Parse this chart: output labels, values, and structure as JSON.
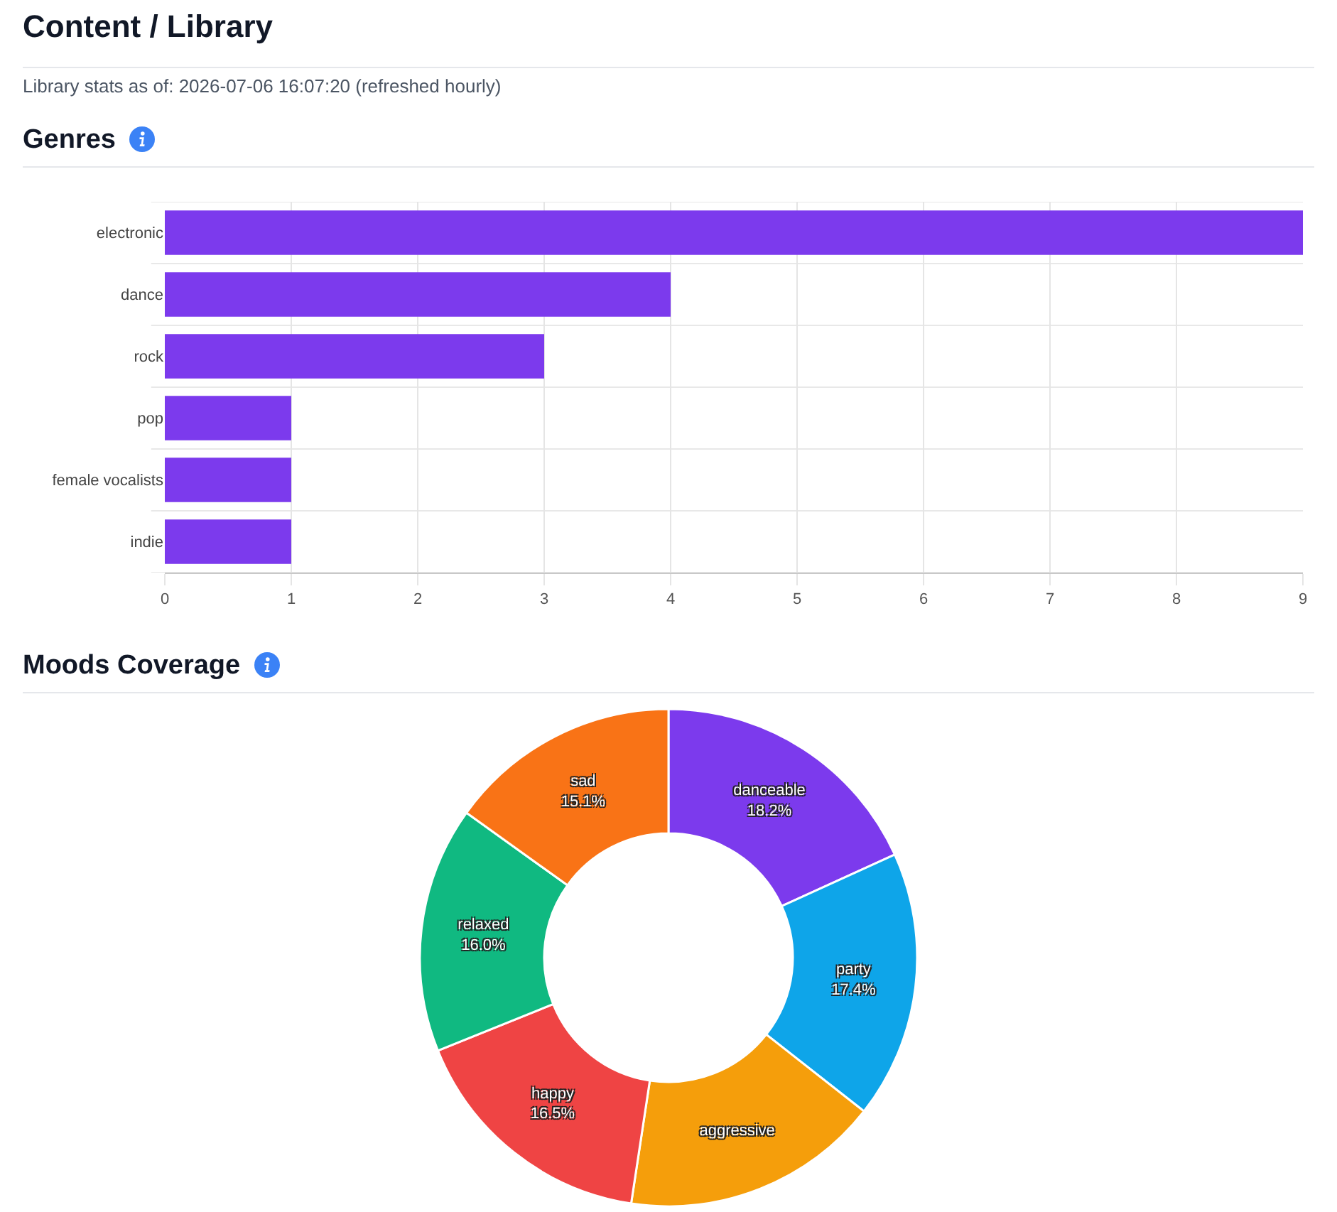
{
  "chart_data": [
    {
      "type": "bar",
      "orientation": "horizontal",
      "title": "Genres",
      "annotations": [
        "Content / Library",
        "Library stats as of: 2026-07-06 16:07:20 (refreshed hourly)"
      ],
      "categories": [
        "electronic",
        "dance",
        "rock",
        "pop",
        "female vocalists",
        "indie"
      ],
      "values": [
        9,
        4,
        3,
        1,
        1,
        1
      ],
      "color": "#7c3aed",
      "xlim": [
        0,
        9
      ],
      "xticks": [
        0,
        1,
        2,
        3,
        4,
        5,
        6,
        7,
        8,
        9
      ],
      "grid": true
    },
    {
      "type": "donut",
      "title": "Moods Coverage",
      "categories": [
        "danceable",
        "party",
        "aggressive",
        "happy",
        "relaxed",
        "sad"
      ],
      "values": [
        18.2,
        17.4,
        16.8,
        16.5,
        16.0,
        15.1
      ],
      "colors": [
        "#7c3aed",
        "#0ea5e9",
        "#f59e0b",
        "#ef4444",
        "#10b981",
        "#f97316"
      ],
      "value_labels": [
        "18.2%",
        "17.4%",
        null,
        "16.5%",
        "16.0%",
        "15.1%"
      ]
    }
  ]
}
